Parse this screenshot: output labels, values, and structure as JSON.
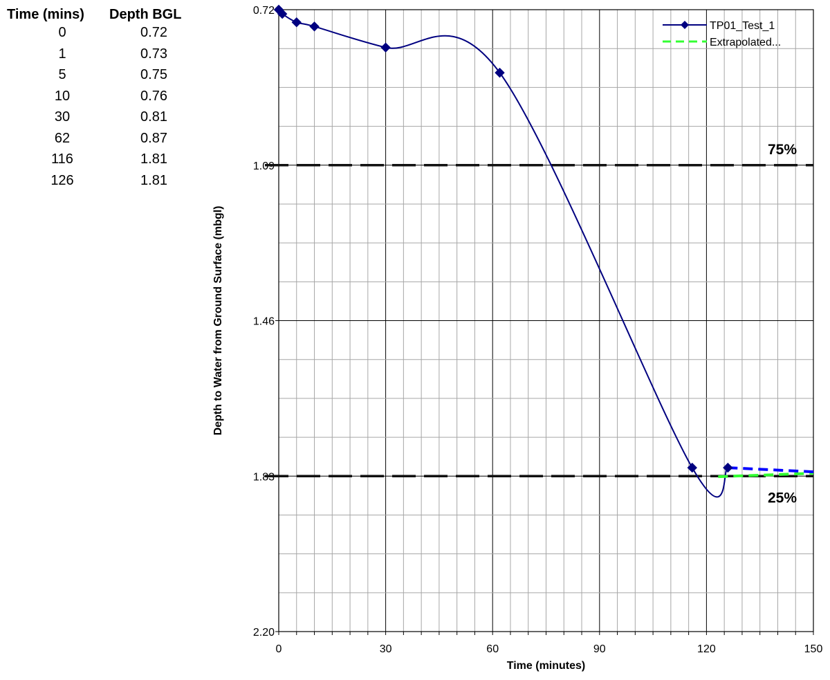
{
  "table": {
    "headers": [
      "Time (mins)",
      "Depth BGL"
    ],
    "rows": [
      [
        "0",
        "0.72"
      ],
      [
        "1",
        "0.73"
      ],
      [
        "5",
        "0.75"
      ],
      [
        "10",
        "0.76"
      ],
      [
        "30",
        "0.81"
      ],
      [
        "62",
        "0.87"
      ],
      [
        "116",
        "1.81"
      ],
      [
        "126",
        "1.81"
      ]
    ]
  },
  "chart_data": {
    "type": "line",
    "xlabel": "Time (minutes)",
    "ylabel": "Depth to Water from Ground Surface (mbgl)",
    "xlim": [
      0,
      150
    ],
    "ylim": [
      2.2,
      0.72
    ],
    "y_inverted": true,
    "x_ticks": [
      "0",
      "30",
      "60",
      "90",
      "120",
      "150"
    ],
    "y_ticks": [
      "0.72",
      "1.09",
      "1.46",
      "1.83",
      "2.20"
    ],
    "grid": true,
    "legend_position": "top-right",
    "series": [
      {
        "name": "TP01_Test_1",
        "color": "#000080",
        "marker": "diamond",
        "x": [
          0,
          1,
          5,
          10,
          30,
          62,
          116,
          126
        ],
        "y": [
          0.72,
          0.73,
          0.75,
          0.76,
          0.81,
          0.87,
          1.81,
          1.81
        ]
      },
      {
        "name": "Extrapolated...",
        "color": "#33ff33",
        "style": "dashed",
        "x": [
          126,
          150
        ],
        "y": [
          1.81,
          1.81
        ]
      }
    ],
    "extra_segment": {
      "color": "#0000ff",
      "style": "dashed",
      "x": [
        126,
        150
      ],
      "y": [
        1.81,
        1.81
      ]
    },
    "reference_lines": [
      {
        "label": "75%",
        "y": 1.09
      },
      {
        "label": "25%",
        "y": 1.83
      }
    ]
  }
}
